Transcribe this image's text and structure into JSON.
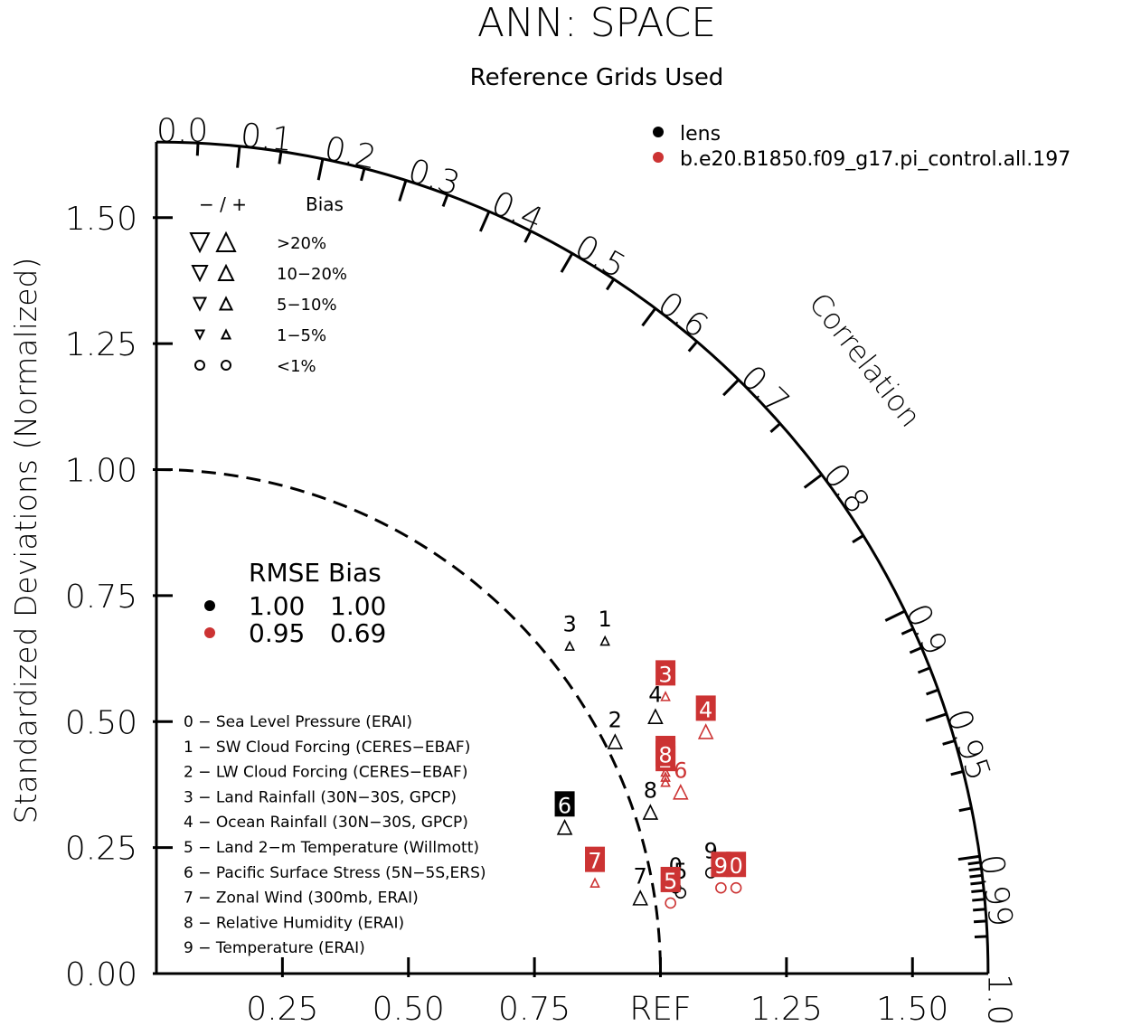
{
  "title": "ANN: SPACE",
  "subtitle": "Reference Grids Used",
  "chart_data": {
    "type": "taylor",
    "ylabel": "Standardized Deviations (Normalized)",
    "arc_label": "Correlation",
    "ref_label": "REF",
    "stddev_range": [
      0,
      1.65
    ],
    "y_ticks": [
      "0.00",
      "0.25",
      "0.50",
      "0.75",
      "1.00",
      "1.25",
      "1.50"
    ],
    "x_ticks": [
      "0.25",
      "0.50",
      "0.75",
      "1.25",
      "1.50"
    ],
    "corr_labels": [
      "0.0",
      "0.1",
      "0.2",
      "0.3",
      "0.4",
      "0.5",
      "0.6",
      "0.7",
      "0.8",
      "0.9",
      "0.95",
      "0.99",
      "1.0"
    ],
    "legend": [
      {
        "name": "lens",
        "color": "#000000"
      },
      {
        "name": "b.e20.B1850.f09_g17.pi_control.all.197",
        "color": "#cc3333"
      }
    ],
    "bias_legend": {
      "header_minus_plus": "− / +",
      "header_bias": "Bias",
      "rows": [
        ">20%",
        "10−20%",
        "5−10%",
        "1−5%",
        "<1%"
      ]
    },
    "rmse_table": {
      "header": "RMSE Bias",
      "rows": [
        {
          "color": "#000000",
          "rmse": "1.00",
          "bias": "1.00"
        },
        {
          "color": "#cc3333",
          "rmse": "0.95",
          "bias": "0.69"
        }
      ]
    },
    "variables": [
      "0 − Sea Level Pressure (ERAI)",
      "1 − SW Cloud Forcing (CERES−EBAF)",
      "2 − LW Cloud Forcing (CERES−EBAF)",
      "3 − Land Rainfall (30N−30S, GPCP)",
      "4 − Ocean Rainfall (30N−30S, GPCP)",
      "5 − Land 2−m Temperature (Willmott)",
      "6 − Pacific Surface Stress (5N−5S,ERS)",
      "7 − Zonal Wind (300mb, ERAI)",
      "8 − Relative Humidity (ERAI)",
      "9 − Temperature (ERAI)"
    ],
    "series": [
      {
        "name": "lens",
        "color": "#000000",
        "points": [
          {
            "id": "0",
            "x": 1.03,
            "y": 0.17,
            "marker": "circle"
          },
          {
            "id": "1",
            "x": 0.89,
            "y": 0.66,
            "marker": "triangle-up-small"
          },
          {
            "id": "2",
            "x": 0.91,
            "y": 0.46,
            "marker": "triangle-up"
          },
          {
            "id": "3",
            "x": 0.82,
            "y": 0.65,
            "marker": "triangle-up-small"
          },
          {
            "id": "4",
            "x": 0.99,
            "y": 0.51,
            "marker": "triangle-up"
          },
          {
            "id": "5",
            "x": 1.04,
            "y": 0.16,
            "marker": "circle"
          },
          {
            "id": "6",
            "x": 0.81,
            "y": 0.29,
            "marker": "triangle-up",
            "boxed": true
          },
          {
            "id": "7",
            "x": 0.96,
            "y": 0.15,
            "marker": "triangle-up"
          },
          {
            "id": "8",
            "x": 0.98,
            "y": 0.32,
            "marker": "triangle-up"
          },
          {
            "id": "9",
            "x": 1.1,
            "y": 0.2,
            "marker": "circle"
          }
        ]
      },
      {
        "name": "b.e20.B1850.f09_g17.pi_control.all.197",
        "color": "#cc3333",
        "points": [
          {
            "id": "0",
            "x": 1.15,
            "y": 0.17,
            "marker": "circle",
            "boxed": true
          },
          {
            "id": "1",
            "x": 1.01,
            "y": 0.4,
            "marker": "triangle-up-small",
            "boxed": true
          },
          {
            "id": "2",
            "x": 1.01,
            "y": 0.38,
            "marker": "triangle-up-small",
            "boxed": true
          },
          {
            "id": "3",
            "x": 1.01,
            "y": 0.55,
            "marker": "triangle-up-small",
            "boxed": true
          },
          {
            "id": "4",
            "x": 1.09,
            "y": 0.48,
            "marker": "triangle-up",
            "boxed": true
          },
          {
            "id": "5",
            "x": 1.02,
            "y": 0.14,
            "marker": "circle",
            "boxed": true
          },
          {
            "id": "6",
            "x": 1.04,
            "y": 0.36,
            "marker": "triangle-up"
          },
          {
            "id": "7",
            "x": 0.87,
            "y": 0.18,
            "marker": "triangle-up-small",
            "boxed": true
          },
          {
            "id": "8",
            "x": 1.01,
            "y": 0.39,
            "marker": "triangle-up-small",
            "boxed": true
          },
          {
            "id": "9",
            "x": 1.12,
            "y": 0.17,
            "marker": "circle",
            "boxed": true
          }
        ]
      }
    ]
  }
}
